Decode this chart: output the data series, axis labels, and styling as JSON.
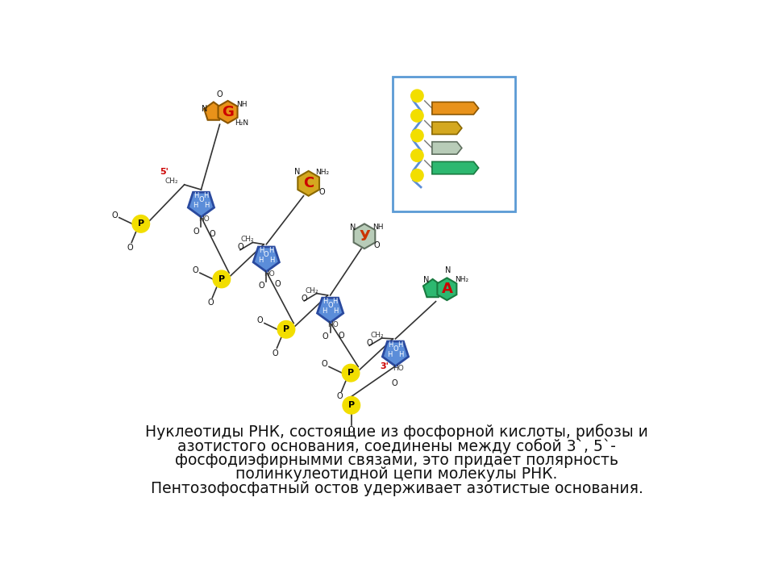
{
  "background_color": "#ffffff",
  "text_line1": "Нуклеотиды РНК, состоящие из фосфорной кислоты, рибозы и",
  "text_line2": "азотистого основания, соединены между собой 3`, 5`-",
  "text_line3": "фосфодиэфирнымми связами, это придает полярность",
  "text_line4": "полинкулеотидной цепи молекулы РНК.",
  "text_line5": "Пентозофосфатный остов удерживает азотистые основания.",
  "phosphate_color": "#f2de00",
  "ribose_color": "#5b8dd9",
  "ribose_dark": "#2a4a9f",
  "G_base_color": "#e8921a",
  "G_base_edge": "#8a5500",
  "C_base_color": "#d4a820",
  "C_base_edge": "#8a6800",
  "U_base_color": "#b8ccb8",
  "U_base_edge": "#607060",
  "A_base_color": "#2db870",
  "A_base_edge": "#1a7a40",
  "legend_border": "#5b9bd5",
  "red_label": "#cc0000",
  "line_color": "#333333",
  "text_color": "#111111"
}
